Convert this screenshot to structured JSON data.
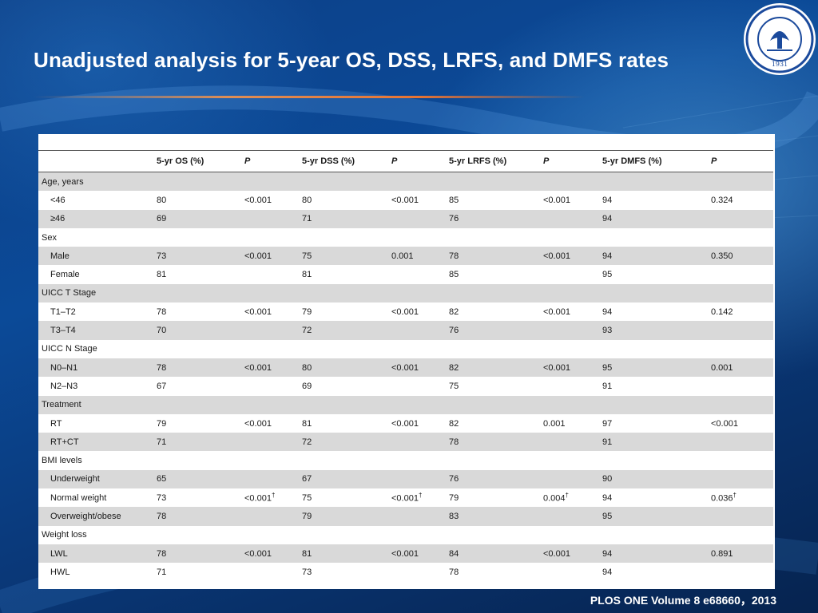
{
  "slide": {
    "title": "Unadjusted analysis for 5-year OS, DSS, LRFS, and DMFS rates",
    "citation": "PLOS ONE Volume 8 e68660，2013",
    "logo_label": "1931"
  },
  "colors": {
    "background": "#0b4a98",
    "title_rule": "#ff8c3c",
    "row_shade": "#d9d9d9"
  },
  "table": {
    "headers": [
      "",
      "5-yr OS (%)",
      "P",
      "5-yr DSS (%)",
      "P",
      "5-yr LRFS (%)",
      "P",
      "5-yr DMFS (%)",
      "P"
    ],
    "rows": [
      {
        "cells": [
          "Age, years",
          "",
          "",
          "",
          "",
          "",
          "",
          "",
          ""
        ],
        "group": true
      },
      {
        "cells": [
          "<46",
          "80",
          "<0.001",
          "80",
          "<0.001",
          "85",
          "<0.001",
          "94",
          "0.324"
        ]
      },
      {
        "cells": [
          "≥46",
          "69",
          "",
          "71",
          "",
          "76",
          "",
          "94",
          ""
        ]
      },
      {
        "cells": [
          "Sex",
          "",
          "",
          "",
          "",
          "",
          "",
          "",
          ""
        ],
        "group": true
      },
      {
        "cells": [
          "Male",
          "73",
          "<0.001",
          "75",
          "0.001",
          "78",
          "<0.001",
          "94",
          "0.350"
        ]
      },
      {
        "cells": [
          "Female",
          "81",
          "",
          "81",
          "",
          "85",
          "",
          "95",
          ""
        ]
      },
      {
        "cells": [
          "UICC T Stage",
          "",
          "",
          "",
          "",
          "",
          "",
          "",
          ""
        ],
        "group": true
      },
      {
        "cells": [
          "T1–T2",
          "78",
          "<0.001",
          "79",
          "<0.001",
          "82",
          "<0.001",
          "94",
          "0.142"
        ]
      },
      {
        "cells": [
          "T3–T4",
          "70",
          "",
          "72",
          "",
          "76",
          "",
          "93",
          ""
        ]
      },
      {
        "cells": [
          "UICC N Stage",
          "",
          "",
          "",
          "",
          "",
          "",
          "",
          ""
        ],
        "group": true
      },
      {
        "cells": [
          "N0–N1",
          "78",
          "<0.001",
          "80",
          "<0.001",
          "82",
          "<0.001",
          "95",
          "0.001"
        ]
      },
      {
        "cells": [
          "N2–N3",
          "67",
          "",
          "69",
          "",
          "75",
          "",
          "91",
          ""
        ]
      },
      {
        "cells": [
          "Treatment",
          "",
          "",
          "",
          "",
          "",
          "",
          "",
          ""
        ],
        "group": true
      },
      {
        "cells": [
          "RT",
          "79",
          "<0.001",
          "81",
          "<0.001",
          "82",
          "0.001",
          "97",
          "<0.001"
        ]
      },
      {
        "cells": [
          "RT+CT",
          "71",
          "",
          "72",
          "",
          "78",
          "",
          "91",
          ""
        ]
      },
      {
        "cells": [
          "BMI levels",
          "",
          "",
          "",
          "",
          "",
          "",
          "",
          ""
        ],
        "group": true
      },
      {
        "cells": [
          "Underweight",
          "65",
          "",
          "67",
          "",
          "76",
          "",
          "90",
          ""
        ]
      },
      {
        "cells": [
          "Normal weight",
          "73",
          "<0.001†",
          "75",
          "<0.001†",
          "79",
          "0.004†",
          "94",
          "0.036†"
        ]
      },
      {
        "cells": [
          "Overweight/obese",
          "78",
          "",
          "79",
          "",
          "83",
          "",
          "95",
          ""
        ]
      },
      {
        "cells": [
          "Weight loss",
          "",
          "",
          "",
          "",
          "",
          "",
          "",
          ""
        ],
        "group": true
      },
      {
        "cells": [
          "LWL",
          "78",
          "<0.001",
          "81",
          "<0.001",
          "84",
          "<0.001",
          "94",
          "0.891"
        ]
      },
      {
        "cells": [
          "HWL",
          "71",
          "",
          "73",
          "",
          "78",
          "",
          "94",
          ""
        ]
      }
    ]
  }
}
